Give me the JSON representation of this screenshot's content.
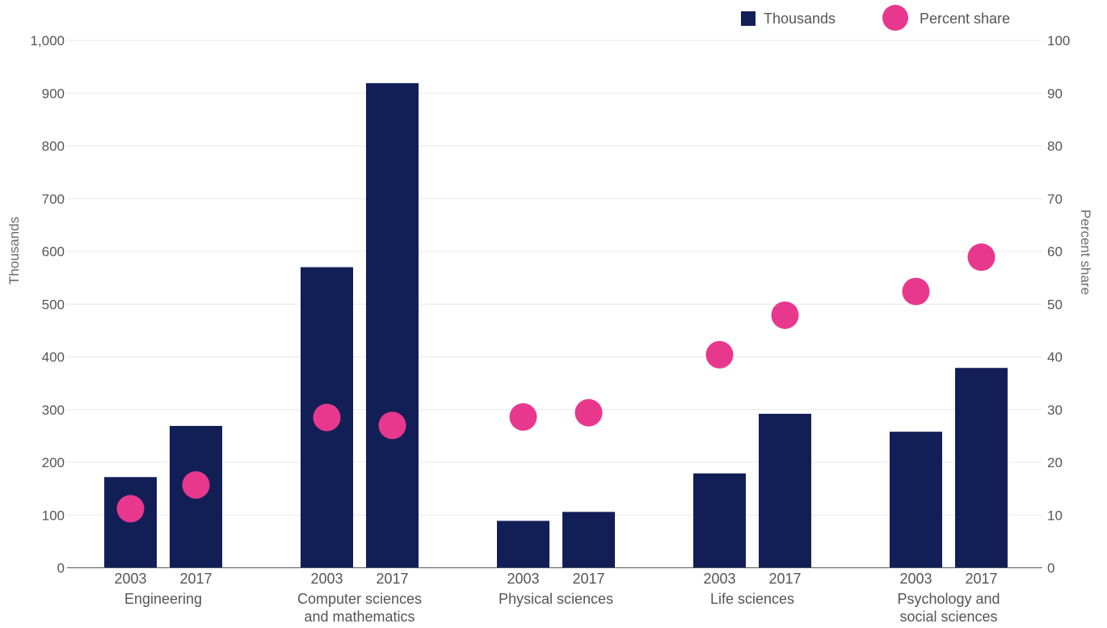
{
  "chart_data": {
    "type": "bar",
    "groups": [
      {
        "label": [
          "Engineering"
        ],
        "years": [
          "2003",
          "2017"
        ],
        "thousands": [
          172,
          269
        ],
        "percent_share": [
          11.2,
          15.7
        ]
      },
      {
        "label": [
          "Computer sciences",
          "and mathematics"
        ],
        "years": [
          "2003",
          "2017"
        ],
        "thousands": [
          570,
          919
        ],
        "percent_share": [
          28.5,
          27.0
        ]
      },
      {
        "label": [
          "Physical sciences"
        ],
        "years": [
          "2003",
          "2017"
        ],
        "thousands": [
          89,
          106
        ],
        "percent_share": [
          28.6,
          29.4
        ]
      },
      {
        "label": [
          "Life sciences"
        ],
        "years": [
          "2003",
          "2017"
        ],
        "thousands": [
          179,
          292
        ],
        "percent_share": [
          40.4,
          47.9
        ]
      },
      {
        "label": [
          "Psychology and",
          "social sciences"
        ],
        "years": [
          "2003",
          "2017"
        ],
        "thousands": [
          258,
          379
        ],
        "percent_share": [
          52.4,
          58.9
        ]
      }
    ],
    "series": [
      {
        "name": "Thousands",
        "kind": "bar",
        "axis": "left",
        "color": "#121f57"
      },
      {
        "name": "Percent share",
        "kind": "dot",
        "axis": "right",
        "color": "#e8388e"
      }
    ],
    "y_left": {
      "label": "Thousands",
      "ylim": [
        0,
        1000
      ],
      "ticks": [
        "0",
        "100",
        "200",
        "300",
        "400",
        "500",
        "600",
        "700",
        "800",
        "900",
        "1,000"
      ]
    },
    "y_right": {
      "label": "Percent share",
      "ylim": [
        0,
        100
      ],
      "ticks": [
        "0",
        "10",
        "20",
        "30",
        "40",
        "50",
        "60",
        "70",
        "80",
        "90",
        "100"
      ]
    },
    "grid": true,
    "legend_position": "top-right"
  }
}
